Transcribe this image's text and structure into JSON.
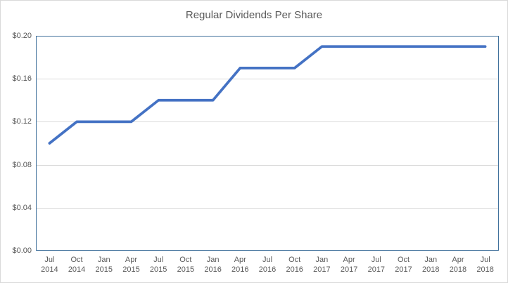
{
  "chart_data": {
    "type": "line",
    "title": "Regular Dividends Per Share",
    "categories": [
      [
        "Jul",
        "2014"
      ],
      [
        "Oct",
        "2014"
      ],
      [
        "Jan",
        "2015"
      ],
      [
        "Apr",
        "2015"
      ],
      [
        "Jul",
        "2015"
      ],
      [
        "Oct",
        "2015"
      ],
      [
        "Jan",
        "2016"
      ],
      [
        "Apr",
        "2016"
      ],
      [
        "Jul",
        "2016"
      ],
      [
        "Oct",
        "2016"
      ],
      [
        "Jan",
        "2017"
      ],
      [
        "Apr",
        "2017"
      ],
      [
        "Jul",
        "2017"
      ],
      [
        "Oct",
        "2017"
      ],
      [
        "Jan",
        "2018"
      ],
      [
        "Apr",
        "2018"
      ],
      [
        "Jul",
        "2018"
      ]
    ],
    "values": [
      0.1,
      0.12,
      0.12,
      0.12,
      0.14,
      0.14,
      0.14,
      0.17,
      0.17,
      0.17,
      0.19,
      0.19,
      0.19,
      0.19,
      0.19,
      0.19,
      0.19
    ],
    "ylim": [
      0,
      0.2
    ],
    "ytick_step": 0.04,
    "ytick_labels": [
      "$0.00",
      "$0.04",
      "$0.08",
      "$0.12",
      "$0.16",
      "$0.20"
    ],
    "xlabel": "",
    "ylabel": "",
    "grid": true,
    "legend": "none",
    "markers": "none",
    "colors": {
      "line": "#4472C4",
      "gridline": "#D9D9D9",
      "plot_border": "#41719C",
      "text": "#595959",
      "chart_border": "#D9D9D9",
      "background": "#FFFFFF"
    }
  }
}
